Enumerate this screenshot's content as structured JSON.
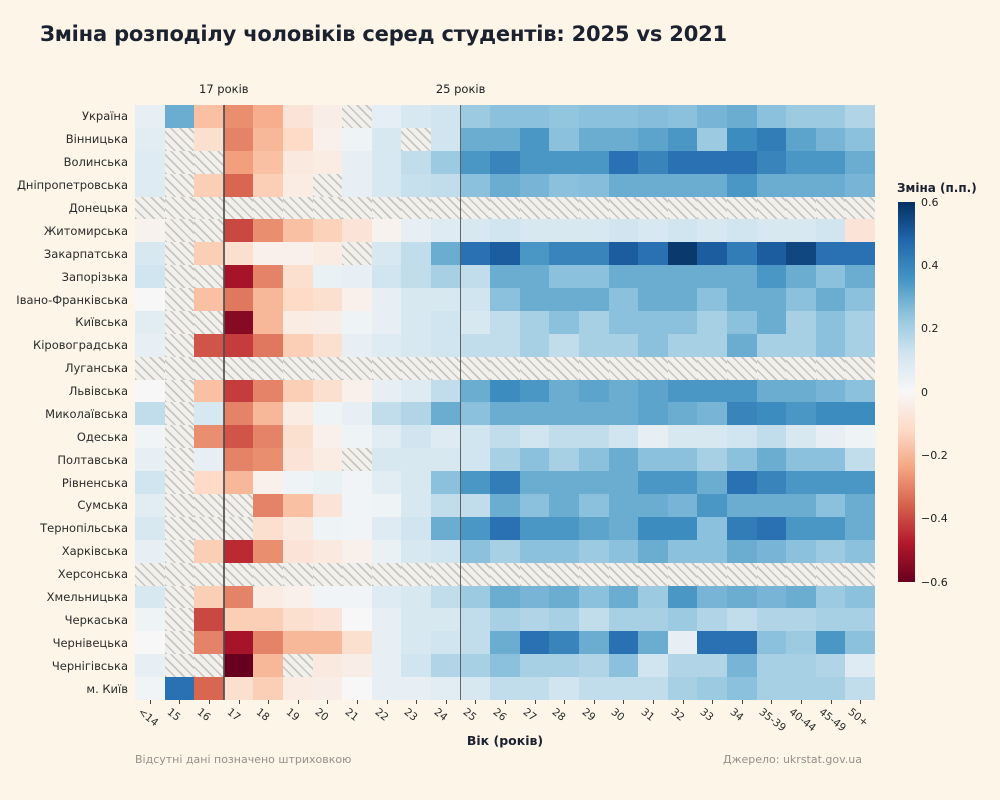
{
  "title": "Зміна розподілу чоловіків серед студентів: 2025 vs 2021",
  "footer": {
    "note": "Відсутні дані позначено штриховкою",
    "source": "Джерело: ukrstat.gov.ua"
  },
  "colorbar": {
    "title": "Зміна (п.п.)",
    "ticks": [
      {
        "label": "0.6",
        "value": 0.6
      },
      {
        "label": "0.4",
        "value": 0.4
      },
      {
        "label": "0.2",
        "value": 0.2
      },
      {
        "label": "0",
        "value": 0.0
      },
      {
        "label": "−0.2",
        "value": -0.2
      },
      {
        "label": "−0.4",
        "value": -0.4
      },
      {
        "label": "−0.6",
        "value": -0.6
      }
    ]
  },
  "colors": {
    "background": "#fcf5e8",
    "annotation_line": "#4d4d4d",
    "hatch_line": "#c7c5c0",
    "hatch_bg": "#f2f0ec",
    "colormap_anchors": [
      {
        "u": 0.0,
        "color": "#67001f"
      },
      {
        "u": 0.1,
        "color": "#b2182b"
      },
      {
        "u": 0.2,
        "color": "#d6604d"
      },
      {
        "u": 0.3,
        "color": "#f4a582"
      },
      {
        "u": 0.4,
        "color": "#fddbc7"
      },
      {
        "u": 0.5,
        "color": "#f7f7f7"
      },
      {
        "u": 0.6,
        "color": "#d1e5f0"
      },
      {
        "u": 0.7,
        "color": "#92c5de"
      },
      {
        "u": 0.8,
        "color": "#4393c3"
      },
      {
        "u": 0.9,
        "color": "#2166ac"
      },
      {
        "u": 1.0,
        "color": "#053061"
      }
    ]
  },
  "chart_data": {
    "type": "heatmap",
    "title": "Зміна розподілу чоловіків серед студентів: 2025 vs 2021",
    "xlabel": "Вік (років)",
    "ylabel": "",
    "zmin": -0.6,
    "zmax": 0.6,
    "legend_title": "Зміна (п.п.)",
    "missing_note": "Відсутні дані позначено штриховкою (null = відсутні дані)",
    "annotations": [
      {
        "label": "17 років",
        "col": 3
      },
      {
        "label": "25 років",
        "col": 11
      }
    ],
    "x_categories": [
      "<14",
      "15",
      "16",
      "17",
      "18",
      "19",
      "20",
      "21",
      "22",
      "23",
      "24",
      "25",
      "26",
      "27",
      "28",
      "29",
      "30",
      "31",
      "32",
      "33",
      "34",
      "35-39",
      "40-44",
      "45-49",
      "50+"
    ],
    "y_categories": [
      "Україна",
      "Вінницька",
      "Волинська",
      "Дніпропетровська",
      "Донецька",
      "Житомирська",
      "Закарпатська",
      "Запорізька",
      "Івано-Франківська",
      "Київська",
      "Кіровоградська",
      "Луганська",
      "Львівська",
      "Миколаївська",
      "Одеська",
      "Полтавська",
      "Рівненська",
      "Сумська",
      "Тернопільська",
      "Харківська",
      "Херсонська",
      "Хмельницька",
      "Черкаська",
      "Чернівецька",
      "Чернігівська",
      "м. Київ"
    ],
    "values": [
      [
        0.05,
        0.3,
        -0.18,
        -0.28,
        -0.22,
        -0.08,
        -0.04,
        null,
        0.06,
        0.1,
        0.12,
        0.22,
        0.25,
        0.25,
        0.24,
        0.25,
        0.25,
        0.26,
        0.25,
        0.28,
        0.3,
        0.25,
        0.22,
        0.22,
        0.18
      ],
      [
        0.07,
        null,
        -0.1,
        -0.3,
        -0.2,
        -0.12,
        -0.03,
        0.03,
        0.1,
        null,
        0.12,
        0.3,
        0.3,
        0.35,
        0.25,
        0.3,
        0.3,
        0.32,
        0.35,
        0.22,
        0.38,
        0.42,
        0.32,
        0.28,
        0.25
      ],
      [
        0.08,
        null,
        null,
        -0.25,
        -0.18,
        -0.06,
        -0.05,
        0.05,
        0.1,
        0.15,
        0.22,
        0.35,
        0.4,
        0.35,
        0.35,
        0.35,
        0.45,
        0.4,
        0.45,
        0.45,
        0.45,
        0.4,
        0.35,
        0.35,
        0.3
      ],
      [
        0.08,
        null,
        -0.15,
        -0.35,
        -0.15,
        -0.05,
        null,
        0.05,
        0.1,
        0.14,
        0.15,
        0.25,
        0.3,
        0.28,
        0.25,
        0.26,
        0.3,
        0.3,
        0.3,
        0.3,
        0.35,
        0.3,
        0.3,
        0.3,
        0.28
      ],
      [
        null,
        null,
        null,
        null,
        null,
        null,
        null,
        null,
        null,
        null,
        null,
        null,
        null,
        null,
        null,
        null,
        null,
        null,
        null,
        null,
        null,
        null,
        null,
        null,
        null
      ],
      [
        -0.02,
        null,
        null,
        -0.4,
        -0.28,
        -0.18,
        -0.14,
        -0.08,
        -0.02,
        0.05,
        0.08,
        0.1,
        0.12,
        0.1,
        0.1,
        0.1,
        0.12,
        0.1,
        0.12,
        0.1,
        0.12,
        0.1,
        0.1,
        0.12,
        -0.08
      ],
      [
        0.1,
        null,
        -0.15,
        -0.1,
        -0.03,
        -0.03,
        -0.05,
        null,
        0.1,
        0.15,
        0.3,
        0.45,
        0.5,
        0.35,
        0.4,
        0.4,
        0.5,
        0.45,
        0.58,
        0.5,
        0.42,
        0.5,
        0.55,
        0.45,
        0.45
      ],
      [
        0.12,
        null,
        null,
        -0.5,
        -0.3,
        -0.1,
        0.04,
        0.05,
        0.12,
        0.15,
        0.2,
        0.15,
        0.3,
        0.3,
        0.25,
        0.25,
        0.3,
        0.3,
        0.3,
        0.3,
        0.3,
        0.35,
        0.3,
        0.25,
        0.3
      ],
      [
        0.0,
        null,
        -0.18,
        -0.32,
        -0.2,
        -0.12,
        -0.1,
        -0.03,
        0.05,
        0.1,
        0.1,
        0.12,
        0.25,
        0.3,
        0.3,
        0.3,
        0.25,
        0.3,
        0.3,
        0.25,
        0.3,
        0.3,
        0.25,
        0.3,
        0.25
      ],
      [
        0.07,
        null,
        null,
        -0.55,
        -0.2,
        -0.05,
        -0.04,
        0.03,
        0.05,
        0.1,
        0.12,
        0.1,
        0.15,
        0.2,
        0.25,
        0.2,
        0.25,
        0.25,
        0.25,
        0.2,
        0.25,
        0.3,
        0.2,
        0.25,
        0.2
      ],
      [
        0.05,
        null,
        -0.38,
        -0.42,
        -0.32,
        -0.15,
        -0.1,
        0.05,
        0.08,
        0.1,
        0.12,
        0.15,
        0.15,
        0.2,
        0.15,
        0.2,
        0.2,
        0.25,
        0.2,
        0.2,
        0.3,
        0.2,
        0.2,
        0.25,
        0.2
      ],
      [
        null,
        null,
        null,
        null,
        null,
        null,
        null,
        null,
        null,
        null,
        null,
        null,
        null,
        null,
        null,
        null,
        null,
        null,
        null,
        null,
        null,
        null,
        null,
        null,
        null
      ],
      [
        0.0,
        null,
        -0.18,
        -0.42,
        -0.3,
        -0.15,
        -0.1,
        -0.03,
        0.05,
        0.08,
        0.15,
        0.3,
        0.38,
        0.35,
        0.3,
        0.32,
        0.3,
        0.32,
        0.35,
        0.35,
        0.35,
        0.3,
        0.3,
        0.28,
        0.25
      ],
      [
        0.15,
        null,
        0.1,
        -0.3,
        -0.2,
        -0.05,
        0.03,
        0.05,
        0.15,
        0.18,
        0.3,
        0.25,
        0.3,
        0.3,
        0.3,
        0.3,
        0.3,
        0.32,
        0.3,
        0.28,
        0.4,
        0.38,
        0.35,
        0.38,
        0.38
      ],
      [
        0.02,
        null,
        -0.28,
        -0.38,
        -0.3,
        -0.1,
        -0.03,
        0.03,
        0.07,
        0.12,
        0.08,
        0.12,
        0.15,
        0.12,
        0.15,
        0.15,
        0.12,
        0.05,
        0.1,
        0.1,
        0.12,
        0.15,
        0.1,
        0.05,
        0.03
      ],
      [
        0.05,
        null,
        0.05,
        -0.3,
        -0.28,
        -0.08,
        -0.05,
        null,
        0.1,
        0.1,
        0.1,
        0.12,
        0.2,
        0.25,
        0.2,
        0.25,
        0.3,
        0.25,
        0.25,
        0.2,
        0.25,
        0.3,
        0.25,
        0.25,
        0.15
      ],
      [
        0.12,
        null,
        -0.12,
        -0.2,
        -0.03,
        0.03,
        0.04,
        0.02,
        0.07,
        0.1,
        0.25,
        0.35,
        0.42,
        0.3,
        0.3,
        0.3,
        0.3,
        0.35,
        0.35,
        0.3,
        0.45,
        0.4,
        0.35,
        0.35,
        0.35
      ],
      [
        0.07,
        null,
        null,
        null,
        -0.3,
        -0.18,
        -0.08,
        0.02,
        0.03,
        0.1,
        0.15,
        0.15,
        0.3,
        0.25,
        0.3,
        0.25,
        0.3,
        0.3,
        0.28,
        0.35,
        0.3,
        0.3,
        0.3,
        0.25,
        0.3
      ],
      [
        0.1,
        null,
        null,
        null,
        -0.1,
        -0.06,
        0.03,
        0.02,
        0.08,
        0.12,
        0.3,
        0.35,
        0.45,
        0.35,
        0.35,
        0.32,
        0.3,
        0.38,
        0.38,
        0.25,
        0.42,
        0.45,
        0.35,
        0.35,
        0.3
      ],
      [
        0.05,
        null,
        -0.15,
        -0.45,
        -0.28,
        -0.08,
        -0.06,
        -0.03,
        0.04,
        0.1,
        0.12,
        0.25,
        0.2,
        0.25,
        0.25,
        0.22,
        0.25,
        0.3,
        0.25,
        0.25,
        0.3,
        0.28,
        0.25,
        0.22,
        0.25
      ],
      [
        null,
        null,
        null,
        null,
        null,
        null,
        null,
        null,
        null,
        null,
        null,
        null,
        null,
        null,
        null,
        null,
        null,
        null,
        null,
        null,
        null,
        null,
        null,
        null,
        null
      ],
      [
        0.1,
        null,
        -0.15,
        -0.3,
        -0.05,
        -0.03,
        0.02,
        0.02,
        0.08,
        0.1,
        0.15,
        0.22,
        0.3,
        0.28,
        0.3,
        0.25,
        0.3,
        0.22,
        0.35,
        0.28,
        0.3,
        0.28,
        0.3,
        0.22,
        0.25
      ],
      [
        0.03,
        null,
        -0.4,
        -0.15,
        -0.15,
        -0.1,
        -0.08,
        0.0,
        0.05,
        0.1,
        0.1,
        0.15,
        0.2,
        0.18,
        0.2,
        0.15,
        0.2,
        0.2,
        0.22,
        0.18,
        0.15,
        0.18,
        0.18,
        0.2,
        0.2
      ],
      [
        0.0,
        null,
        -0.3,
        -0.5,
        -0.3,
        -0.2,
        -0.2,
        -0.1,
        0.05,
        0.1,
        0.12,
        0.15,
        0.3,
        0.45,
        0.4,
        0.3,
        0.45,
        0.3,
        0.05,
        0.45,
        0.45,
        0.25,
        0.22,
        0.35,
        0.25
      ],
      [
        0.05,
        null,
        null,
        -0.6,
        -0.2,
        null,
        -0.06,
        -0.04,
        0.05,
        0.12,
        0.18,
        0.2,
        0.25,
        0.2,
        0.2,
        0.18,
        0.25,
        0.12,
        0.18,
        0.18,
        0.28,
        0.2,
        0.2,
        0.18,
        0.08
      ],
      [
        0.02,
        0.45,
        -0.35,
        -0.1,
        -0.15,
        -0.05,
        -0.04,
        0.0,
        0.05,
        0.05,
        0.07,
        0.1,
        0.15,
        0.15,
        0.12,
        0.15,
        0.15,
        0.15,
        0.2,
        0.22,
        0.25,
        0.2,
        0.2,
        0.2,
        0.15
      ]
    ]
  }
}
